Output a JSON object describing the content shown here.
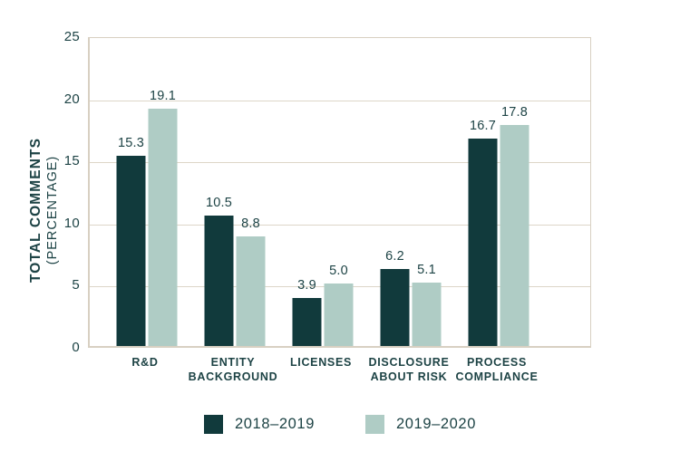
{
  "chart_data": {
    "type": "bar",
    "title": "",
    "ylabel_line1": "TOTAL COMMENTS",
    "ylabel_line2": "(PERCENTAGE)",
    "xlabel": "",
    "ylim": [
      0,
      25
    ],
    "yticks": [
      25,
      20,
      15,
      10,
      5,
      0
    ],
    "grid": "horizontal",
    "value_labels": true,
    "legend_position": "bottom-center",
    "categories": [
      [
        "R&D"
      ],
      [
        "ENTITY",
        "BACKGROUND"
      ],
      [
        "LICENSES"
      ],
      [
        "DISCLOSURE",
        "ABOUT RISK"
      ],
      [
        "PROCESS",
        "COMPLIANCE"
      ]
    ],
    "series": [
      {
        "name": "2018–2019",
        "color": "#113a3c",
        "values": [
          15.3,
          10.5,
          3.9,
          6.2,
          16.7
        ]
      },
      {
        "name": "2019–2020",
        "color": "#afccc5",
        "values": [
          19.1,
          8.8,
          5.0,
          5.1,
          17.8
        ]
      }
    ]
  },
  "colors": {
    "text": "#1d4345",
    "gridline": "#ddd6c8",
    "axis_border": "#d8d0c2",
    "background": "#ffffff",
    "series_dark": "#113a3c",
    "series_light": "#afccc5"
  }
}
